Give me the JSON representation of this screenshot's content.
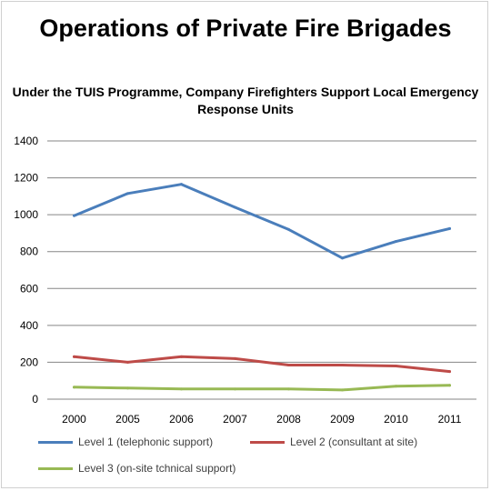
{
  "chart_data": {
    "type": "line",
    "title": "Operations of Private Fire Brigades",
    "subtitle": "Under the TUIS Programme, Company Firefighters Support Local Emergency Response Units",
    "xlabel": "",
    "ylabel": "",
    "categories": [
      "2000",
      "2005",
      "2006",
      "2007",
      "2008",
      "2009",
      "2010",
      "2011"
    ],
    "yticks": [
      "0",
      "200",
      "400",
      "600",
      "800",
      "1000",
      "1200",
      "1400"
    ],
    "ylim": [
      0,
      1400
    ],
    "grid": true,
    "legend_position": "bottom",
    "series": [
      {
        "name": "Level 1 (telephonic support)",
        "color": "#4a7ebb",
        "values": [
          995,
          1115,
          1165,
          1040,
          920,
          765,
          855,
          925
        ]
      },
      {
        "name": "Level 2 (consultant at site)",
        "color": "#be4b48",
        "values": [
          230,
          200,
          230,
          220,
          185,
          185,
          180,
          150
        ]
      },
      {
        "name": "Level 3 (on-site tchnical support)",
        "color": "#98b954",
        "values": [
          65,
          60,
          55,
          55,
          55,
          50,
          70,
          75
        ]
      }
    ]
  }
}
